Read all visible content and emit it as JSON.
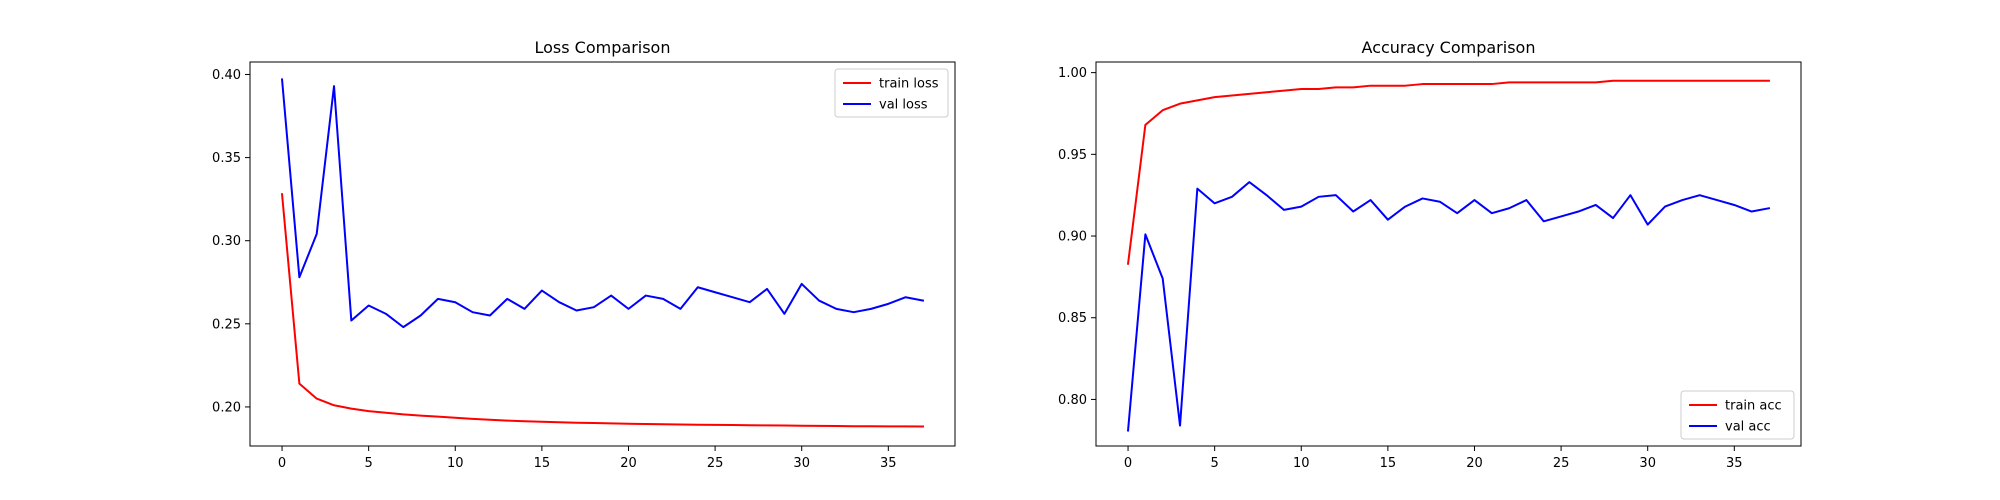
{
  "chart_data": [
    {
      "type": "line",
      "title": "Loss Comparison",
      "xlabel": "",
      "ylabel": "",
      "xlim": [
        -1.85,
        38.85
      ],
      "ylim": [
        0.1765,
        0.4075
      ],
      "xticks": [
        0,
        5,
        10,
        15,
        20,
        25,
        30,
        35
      ],
      "yticks": [
        0.2,
        0.25,
        0.3,
        0.35,
        0.4
      ],
      "ytick_format": 2,
      "grid": false,
      "legend_position": "top-right",
      "x": [
        0,
        1,
        2,
        3,
        4,
        5,
        6,
        7,
        8,
        9,
        10,
        11,
        12,
        13,
        14,
        15,
        16,
        17,
        18,
        19,
        20,
        21,
        22,
        23,
        24,
        25,
        26,
        27,
        28,
        29,
        30,
        31,
        32,
        33,
        34,
        35,
        36,
        37
      ],
      "series": [
        {
          "name": "train loss",
          "color": "#ff0000",
          "values": [
            0.328,
            0.214,
            0.205,
            0.201,
            0.199,
            0.1975,
            0.1965,
            0.1955,
            0.1948,
            0.1942,
            0.1935,
            0.1928,
            0.1923,
            0.1918,
            0.1914,
            0.1911,
            0.1908,
            0.1905,
            0.1903,
            0.1901,
            0.1899,
            0.1897,
            0.1896,
            0.1894,
            0.1893,
            0.1892,
            0.1891,
            0.189,
            0.1889,
            0.1888,
            0.1887,
            0.1886,
            0.1885,
            0.1884,
            0.1884,
            0.1883,
            0.1883,
            0.1882
          ]
        },
        {
          "name": "val loss",
          "color": "#0000ff",
          "values": [
            0.397,
            0.278,
            0.304,
            0.393,
            0.252,
            0.261,
            0.256,
            0.248,
            0.255,
            0.265,
            0.263,
            0.257,
            0.255,
            0.265,
            0.259,
            0.27,
            0.263,
            0.258,
            0.26,
            0.267,
            0.259,
            0.267,
            0.265,
            0.259,
            0.272,
            0.269,
            0.266,
            0.263,
            0.271,
            0.256,
            0.274,
            0.264,
            0.259,
            0.257,
            0.259,
            0.262,
            0.266,
            0.264
          ]
        }
      ]
    },
    {
      "type": "line",
      "title": "Accuracy Comparison",
      "xlabel": "",
      "ylabel": "",
      "xlim": [
        -1.85,
        38.85
      ],
      "ylim": [
        0.7715,
        1.0065
      ],
      "xticks": [
        0,
        5,
        10,
        15,
        20,
        25,
        30,
        35
      ],
      "yticks": [
        0.8,
        0.85,
        0.9,
        0.95,
        1.0
      ],
      "ytick_format": 2,
      "grid": false,
      "legend_position": "bottom-right",
      "x": [
        0,
        1,
        2,
        3,
        4,
        5,
        6,
        7,
        8,
        9,
        10,
        11,
        12,
        13,
        14,
        15,
        16,
        17,
        18,
        19,
        20,
        21,
        22,
        23,
        24,
        25,
        26,
        27,
        28,
        29,
        30,
        31,
        32,
        33,
        34,
        35,
        36,
        37
      ],
      "series": [
        {
          "name": "train acc",
          "color": "#ff0000",
          "values": [
            0.883,
            0.968,
            0.977,
            0.981,
            0.983,
            0.985,
            0.986,
            0.987,
            0.988,
            0.989,
            0.99,
            0.99,
            0.991,
            0.991,
            0.992,
            0.992,
            0.992,
            0.993,
            0.993,
            0.993,
            0.993,
            0.993,
            0.994,
            0.994,
            0.994,
            0.994,
            0.994,
            0.994,
            0.995,
            0.995,
            0.995,
            0.995,
            0.995,
            0.995,
            0.995,
            0.995,
            0.995,
            0.995
          ]
        },
        {
          "name": "val acc",
          "color": "#0000ff",
          "values": [
            0.781,
            0.901,
            0.874,
            0.784,
            0.929,
            0.92,
            0.924,
            0.933,
            0.925,
            0.916,
            0.918,
            0.924,
            0.925,
            0.915,
            0.922,
            0.91,
            0.918,
            0.923,
            0.921,
            0.914,
            0.922,
            0.914,
            0.917,
            0.922,
            0.909,
            0.912,
            0.915,
            0.919,
            0.911,
            0.925,
            0.907,
            0.918,
            0.922,
            0.925,
            0.922,
            0.919,
            0.915,
            0.917
          ]
        }
      ]
    }
  ]
}
